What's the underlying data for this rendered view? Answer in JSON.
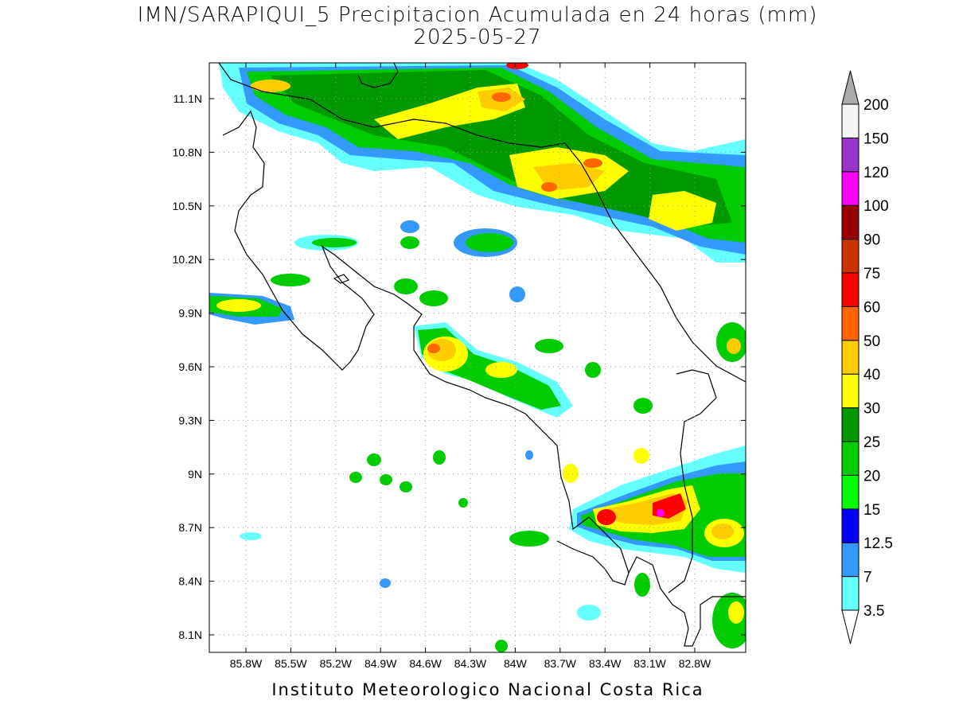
{
  "title": {
    "line1": "IMN/SARAPIQUI_5 Precipitacion Acumulada en 24 horas (mm)",
    "line2": "2025-05-27"
  },
  "footer": "Instituto Meteorologico Nacional Costa Rica",
  "axes": {
    "lon_ticks": [
      "85.8W",
      "85.5W",
      "85.2W",
      "84.9W",
      "84.6W",
      "84.3W",
      "84W",
      "83.7W",
      "83.4W",
      "83.1W",
      "82.8W"
    ],
    "lat_ticks": [
      "11.1N",
      "10.8N",
      "10.5N",
      "10.2N",
      "9.9N",
      "9.6N",
      "9.3N",
      "9N",
      "8.7N",
      "8.4N",
      "8.1N"
    ]
  },
  "colorbar": {
    "levels": [
      "3.5",
      "7",
      "12.5",
      "15",
      "20",
      "25",
      "30",
      "40",
      "50",
      "60",
      "75",
      "90",
      "100",
      "120",
      "150",
      "200"
    ],
    "colors": [
      "#66ffff",
      "#3399ff",
      "#0000ff",
      "#00ff00",
      "#00cc00",
      "#009900",
      "#ffff00",
      "#ffcc00",
      "#ff6600",
      "#ff0000",
      "#cc3300",
      "#990000",
      "#ff00ff",
      "#9933cc",
      "#f5f5f5"
    ],
    "over_color": "#aaaaaa",
    "under_color": "#ffffff"
  }
}
